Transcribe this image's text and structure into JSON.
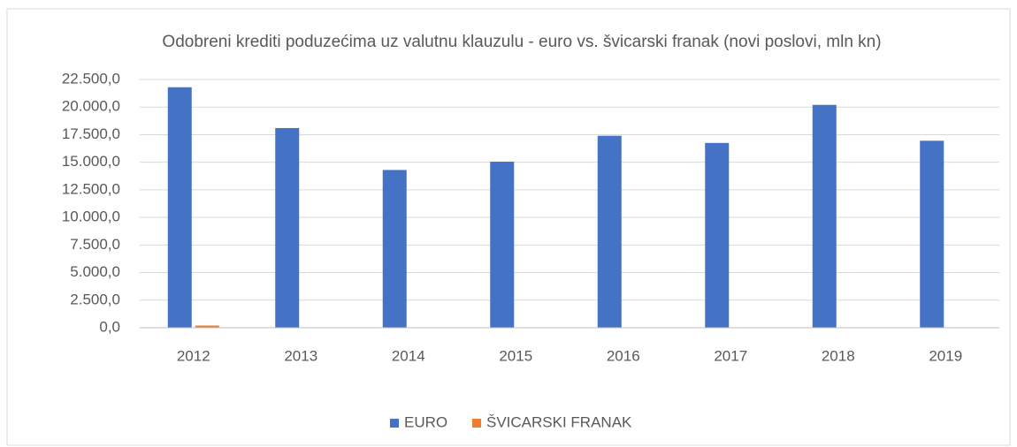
{
  "chart_data": {
    "type": "bar",
    "title": "Odobreni krediti poduzećima uz valutnu klauzulu - euro vs. švicarski franak (novi poslovi, mln kn)",
    "categories": [
      "2012",
      "2013",
      "2014",
      "2015",
      "2016",
      "2017",
      "2018",
      "2019"
    ],
    "series": [
      {
        "name": "EURO",
        "color": "#4472c4",
        "values": [
          21800,
          18100,
          14300,
          15050,
          17400,
          16750,
          20200,
          16950
        ]
      },
      {
        "name": "ŠVICARSKI FRANAK",
        "color": "#ed7d31",
        "values": [
          200,
          20,
          20,
          20,
          20,
          20,
          20,
          20
        ]
      }
    ],
    "ylim": [
      0,
      22500
    ],
    "yticks": [
      {
        "value": 0,
        "label": "0,0"
      },
      {
        "value": 2500,
        "label": "2.500,0"
      },
      {
        "value": 5000,
        "label": "5.000,0"
      },
      {
        "value": 7500,
        "label": "7.500,0"
      },
      {
        "value": 10000,
        "label": "10.000,0"
      },
      {
        "value": 12500,
        "label": "12.500,0"
      },
      {
        "value": 15000,
        "label": "15.000,0"
      },
      {
        "value": 17500,
        "label": "17.500,0"
      },
      {
        "value": 20000,
        "label": "20.000,0"
      },
      {
        "value": 22500,
        "label": "22.500,0"
      }
    ],
    "grid": true,
    "legend": "bottom"
  }
}
